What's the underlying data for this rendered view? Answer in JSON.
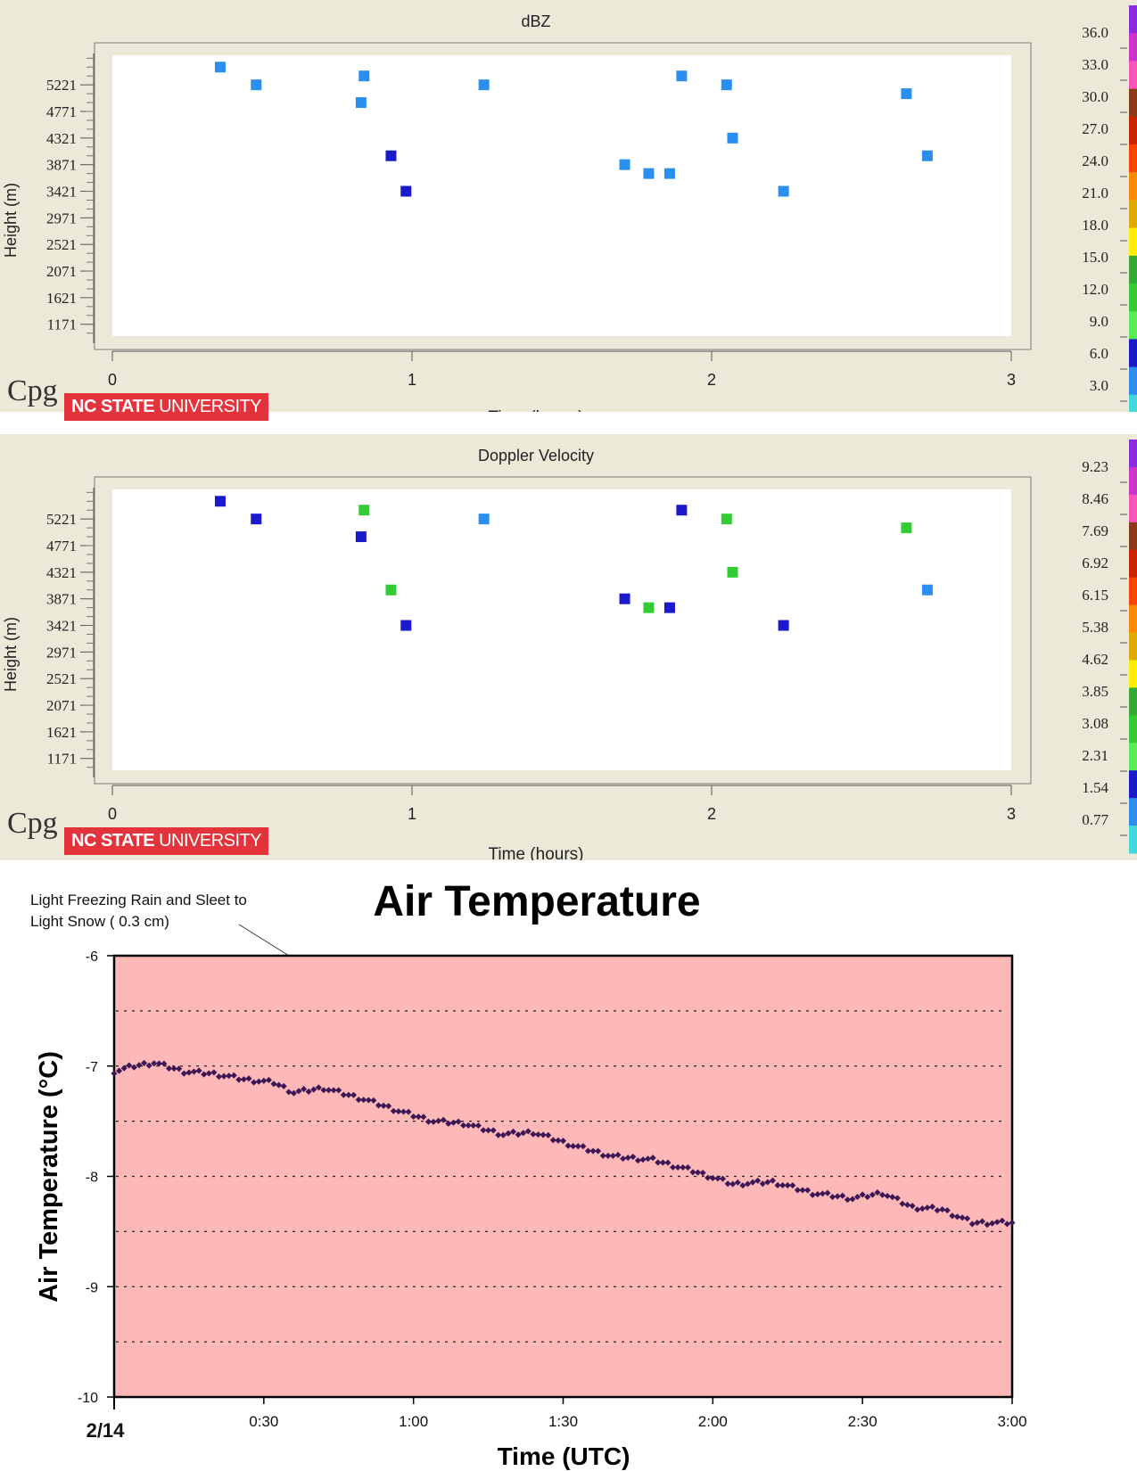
{
  "panels": [
    {
      "title": "dBZ",
      "ylabel": "Height (m)",
      "xlabel": "Time (hours)",
      "logo_cpg": "Cpg",
      "logo_ncsu_bold": "NC STATE",
      "logo_ncsu_rest": " UNIVERSITY"
    },
    {
      "title": "Doppler Velocity",
      "ylabel": "Height (m)",
      "xlabel": "Time (hours)",
      "logo_cpg": "Cpg",
      "logo_ncsu_bold": "NC STATE",
      "logo_ncsu_rest": " UNIVERSITY"
    }
  ],
  "chart_data": [
    {
      "type": "scatter",
      "title": "dBZ",
      "xlabel": "Time (hours)",
      "ylabel": "Height (m)",
      "xlim": [
        0,
        3
      ],
      "ylim": [
        971,
        5721
      ],
      "x_ticks": [
        "0",
        "1",
        "2",
        "3"
      ],
      "y_ticks": [
        1171,
        1621,
        2071,
        2521,
        2971,
        3421,
        3871,
        4321,
        4771,
        5221
      ],
      "grid": false,
      "colorbar": {
        "labels": [
          "36.0",
          "33.0",
          "30.0",
          "27.0",
          "24.0",
          "21.0",
          "18.0",
          "15.0",
          "12.0",
          "9.0",
          "6.0",
          "3.0"
        ],
        "colors": [
          "#8a2be2",
          "#cc33cc",
          "#ff55bb",
          "#8b3a1a",
          "#cc2200",
          "#ff4400",
          "#ff8800",
          "#ddaa00",
          "#ffee00",
          "#33aa33",
          "#33cc33",
          "#55ee55",
          "#1a1acc",
          "#2a8ff0",
          "#40d8d8"
        ]
      },
      "points": [
        {
          "x": 0.36,
          "y": 5521,
          "color": "#2a8ff0"
        },
        {
          "x": 0.48,
          "y": 5221,
          "color": "#2a8ff0"
        },
        {
          "x": 0.83,
          "y": 4921,
          "color": "#2a8ff0"
        },
        {
          "x": 0.84,
          "y": 5371,
          "color": "#2a8ff0"
        },
        {
          "x": 0.93,
          "y": 4021,
          "color": "#1a1acc"
        },
        {
          "x": 0.98,
          "y": 3421,
          "color": "#1a1acc"
        },
        {
          "x": 1.24,
          "y": 5221,
          "color": "#2a8ff0"
        },
        {
          "x": 1.71,
          "y": 3871,
          "color": "#2a8ff0"
        },
        {
          "x": 1.79,
          "y": 3721,
          "color": "#2a8ff0"
        },
        {
          "x": 1.86,
          "y": 3721,
          "color": "#2a8ff0"
        },
        {
          "x": 1.9,
          "y": 5371,
          "color": "#2a8ff0"
        },
        {
          "x": 2.05,
          "y": 5221,
          "color": "#2a8ff0"
        },
        {
          "x": 2.07,
          "y": 4321,
          "color": "#2a8ff0"
        },
        {
          "x": 2.24,
          "y": 3421,
          "color": "#2a8ff0"
        },
        {
          "x": 2.65,
          "y": 5071,
          "color": "#2a8ff0"
        },
        {
          "x": 2.72,
          "y": 4021,
          "color": "#2a8ff0"
        }
      ]
    },
    {
      "type": "scatter",
      "title": "Doppler Velocity",
      "xlabel": "Time (hours)",
      "ylabel": "Height (m)",
      "xlim": [
        0,
        3
      ],
      "ylim": [
        971,
        5721
      ],
      "x_ticks": [
        "0",
        "1",
        "2",
        "3"
      ],
      "y_ticks": [
        1171,
        1621,
        2071,
        2521,
        2971,
        3421,
        3871,
        4321,
        4771,
        5221
      ],
      "grid": false,
      "colorbar": {
        "labels": [
          "9.23",
          "8.46",
          "7.69",
          "6.92",
          "6.15",
          "5.38",
          "4.62",
          "3.85",
          "3.08",
          "2.31",
          "1.54",
          "0.77"
        ],
        "colors": [
          "#8a2be2",
          "#cc33cc",
          "#ff55bb",
          "#8b3a1a",
          "#cc2200",
          "#ff4400",
          "#ff8800",
          "#ddaa00",
          "#ffee00",
          "#33aa33",
          "#33cc33",
          "#55ee55",
          "#1a1acc",
          "#2a8ff0",
          "#40d8d8"
        ]
      },
      "points": [
        {
          "x": 0.36,
          "y": 5521,
          "color": "#1a1acc"
        },
        {
          "x": 0.48,
          "y": 5221,
          "color": "#1a1acc"
        },
        {
          "x": 0.83,
          "y": 4921,
          "color": "#1a1acc"
        },
        {
          "x": 0.84,
          "y": 5371,
          "color": "#33cc33"
        },
        {
          "x": 0.93,
          "y": 4021,
          "color": "#33cc33"
        },
        {
          "x": 0.98,
          "y": 3421,
          "color": "#1a1acc"
        },
        {
          "x": 1.24,
          "y": 5221,
          "color": "#2a8ff0"
        },
        {
          "x": 1.71,
          "y": 3871,
          "color": "#1a1acc"
        },
        {
          "x": 1.79,
          "y": 3721,
          "color": "#33cc33"
        },
        {
          "x": 1.86,
          "y": 3721,
          "color": "#1a1acc"
        },
        {
          "x": 1.9,
          "y": 5371,
          "color": "#1a1acc"
        },
        {
          "x": 2.05,
          "y": 5221,
          "color": "#33cc33"
        },
        {
          "x": 2.07,
          "y": 4321,
          "color": "#33cc33"
        },
        {
          "x": 2.24,
          "y": 3421,
          "color": "#1a1acc"
        },
        {
          "x": 2.65,
          "y": 5071,
          "color": "#33cc33"
        },
        {
          "x": 2.72,
          "y": 4021,
          "color": "#2a8ff0"
        }
      ]
    },
    {
      "type": "scatter",
      "title": "Air Temperature",
      "xlabel": "Time (UTC)",
      "ylabel": "Air Temperature (°C)",
      "date_label": "2/14",
      "annotation": "Light Freezing Rain and Sleet to Light Snow  ( 0.3 cm)",
      "annotation_lines": [
        "Light Freezing Rain and Sleet to",
        "Light Snow  ( 0.3 cm)"
      ],
      "x_tick_labels": [
        "0:30",
        "1:00",
        "1:30",
        "2:00",
        "2:30",
        "3:00"
      ],
      "x_tick_minutes": [
        30,
        60,
        90,
        120,
        150,
        180
      ],
      "xlim_minutes": [
        0,
        180
      ],
      "ylim": [
        -10,
        -6
      ],
      "y_ticks": [
        -10,
        -9,
        -8,
        -7,
        -6
      ],
      "grid": "dotted horizontal every 0.5",
      "plot_background": "#ffb8b8",
      "marker_color": "#3c1655",
      "knots": [
        [
          0,
          -7.05
        ],
        [
          4,
          -7.0
        ],
        [
          8,
          -6.97
        ],
        [
          14,
          -7.05
        ],
        [
          20,
          -7.07
        ],
        [
          26,
          -7.12
        ],
        [
          32,
          -7.15
        ],
        [
          36,
          -7.24
        ],
        [
          42,
          -7.2
        ],
        [
          50,
          -7.3
        ],
        [
          58,
          -7.42
        ],
        [
          64,
          -7.5
        ],
        [
          70,
          -7.52
        ],
        [
          78,
          -7.62
        ],
        [
          84,
          -7.6
        ],
        [
          92,
          -7.72
        ],
        [
          100,
          -7.82
        ],
        [
          108,
          -7.85
        ],
        [
          116,
          -7.95
        ],
        [
          124,
          -8.07
        ],
        [
          132,
          -8.05
        ],
        [
          140,
          -8.15
        ],
        [
          148,
          -8.2
        ],
        [
          154,
          -8.15
        ],
        [
          160,
          -8.28
        ],
        [
          166,
          -8.3
        ],
        [
          172,
          -8.42
        ],
        [
          180,
          -8.42
        ]
      ]
    }
  ]
}
